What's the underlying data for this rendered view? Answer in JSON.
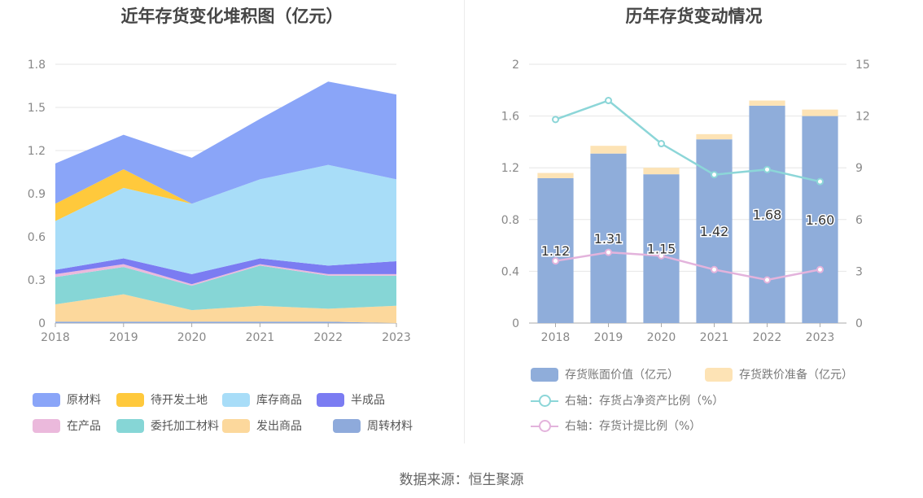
{
  "source_text": "数据来源：恒生聚源",
  "chart_data": [
    {
      "type": "area",
      "stacked": true,
      "title": "近年存货变化堆积图（亿元）",
      "x": [
        "2018",
        "2019",
        "2020",
        "2021",
        "2022",
        "2023"
      ],
      "ylim": [
        0,
        1.8
      ],
      "yticks": [
        "0",
        "0.3",
        "0.6",
        "0.9",
        "1.2",
        "1.5",
        "1.8"
      ],
      "grid": true,
      "legend_position": "bottom",
      "series": [
        {
          "name": "周转材料",
          "color": "#8eaadb",
          "values": [
            0.01,
            0.01,
            0.01,
            0.01,
            0.01,
            0.0
          ]
        },
        {
          "name": "发出商品",
          "color": "#fcd89c",
          "values": [
            0.12,
            0.19,
            0.08,
            0.11,
            0.09,
            0.12
          ]
        },
        {
          "name": "委托加工材料",
          "color": "#86d6d6",
          "values": [
            0.19,
            0.19,
            0.17,
            0.28,
            0.23,
            0.21
          ]
        },
        {
          "name": "在产品",
          "color": "#ebb9dc",
          "values": [
            0.02,
            0.02,
            0.01,
            0.01,
            0.01,
            0.01
          ]
        },
        {
          "name": "半成品",
          "color": "#7b7cf2",
          "values": [
            0.03,
            0.04,
            0.07,
            0.04,
            0.06,
            0.09
          ]
        },
        {
          "name": "库存商品",
          "color": "#a8ddf8",
          "values": [
            0.34,
            0.49,
            0.49,
            0.55,
            0.7,
            0.57
          ]
        },
        {
          "name": "待开发土地",
          "color": "#ffc93c",
          "values": [
            0.12,
            0.13,
            0.0,
            0.0,
            0.0,
            0.0
          ]
        },
        {
          "name": "原材料",
          "color": "#8aa5f8",
          "values": [
            0.28,
            0.24,
            0.32,
            0.42,
            0.58,
            0.59
          ]
        }
      ],
      "legend_order": [
        "原材料",
        "待开发土地",
        "库存商品",
        "半成品",
        "在产品",
        "委托加工材料",
        "发出商品",
        "周转材料"
      ]
    },
    {
      "type": "bar",
      "stacked": true,
      "title": "历年存货变动情况",
      "categories": [
        "2018",
        "2019",
        "2020",
        "2021",
        "2022",
        "2023"
      ],
      "ylim": [
        0,
        2
      ],
      "yticks": [
        "0",
        "0.4",
        "0.8",
        "1.2",
        "1.6",
        "2"
      ],
      "y2lim": [
        0,
        15
      ],
      "y2ticks": [
        "0",
        "3",
        "6",
        "9",
        "12",
        "15"
      ],
      "grid": true,
      "legend_position": "bottom",
      "series": [
        {
          "name": "存货账面价值（亿元）",
          "color": "#8fadda",
          "values": [
            1.12,
            1.31,
            1.15,
            1.42,
            1.68,
            1.6
          ],
          "data_labels": [
            "1.12",
            "1.31",
            "1.15",
            "1.42",
            "1.68",
            "1.60"
          ]
        },
        {
          "name": "存货跌价准备（亿元）",
          "color": "#fde3b5",
          "values": [
            0.04,
            0.06,
            0.05,
            0.04,
            0.04,
            0.05
          ]
        }
      ],
      "line_series": [
        {
          "name": "右轴：存货占净资产比例（%）",
          "color": "#8cd6d8",
          "axis": "right",
          "values": [
            11.8,
            12.9,
            10.4,
            8.6,
            8.9,
            8.2
          ]
        },
        {
          "name": "右轴：存货计提比例（%）",
          "color": "#e3b3dc",
          "axis": "right",
          "values": [
            3.6,
            4.1,
            3.9,
            3.1,
            2.5,
            3.1
          ]
        }
      ]
    }
  ]
}
